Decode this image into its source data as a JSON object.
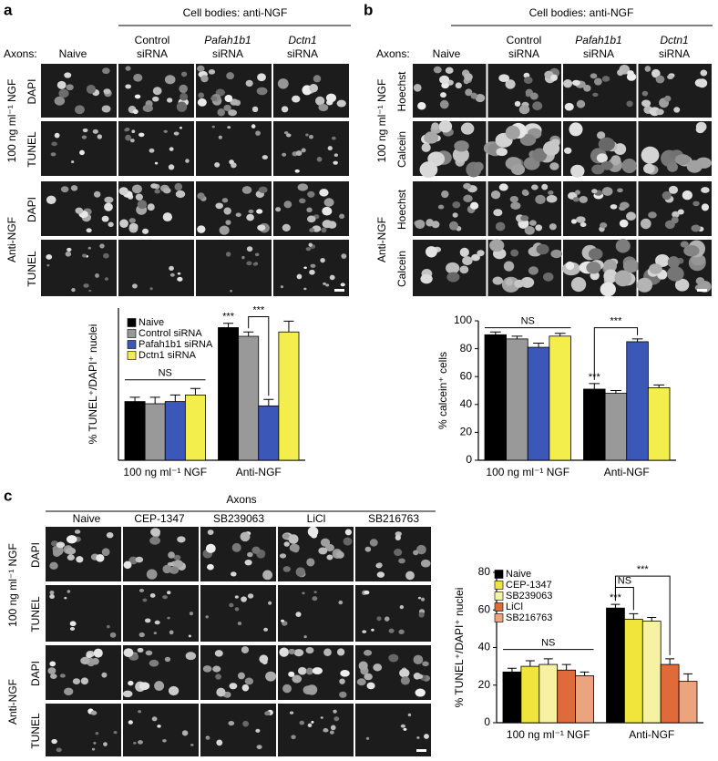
{
  "panels": [
    {
      "label": "a",
      "header": "Cell bodies: anti-NGF",
      "axons_label": "Axons:",
      "columns": [
        [
          "Naive"
        ],
        [
          "Control",
          "siRNA"
        ],
        [
          "Pafah1b1",
          "siRNA"
        ],
        [
          "Dctn1",
          "siRNA"
        ]
      ],
      "row_groups": [
        {
          "name": "100 ng ml⁻¹ NGF",
          "rows": [
            "DAPI",
            "TUNEL"
          ]
        },
        {
          "name": "Anti-NGF",
          "rows": [
            "DAPI",
            "TUNEL"
          ]
        }
      ]
    },
    {
      "label": "b",
      "header": "Cell bodies: anti-NGF",
      "axons_label": "Axons:",
      "columns": [
        [
          "Naive"
        ],
        [
          "Control",
          "siRNA"
        ],
        [
          "Pafah1b1",
          "siRNA"
        ],
        [
          "Dctn1",
          "siRNA"
        ]
      ],
      "row_groups": [
        {
          "name": "100 ng ml⁻¹ NGF",
          "rows": [
            "Hoechst",
            "Calcein"
          ]
        },
        {
          "name": "Anti-NGF",
          "rows": [
            "Hoechst",
            "Calcein"
          ]
        }
      ]
    },
    {
      "label": "c",
      "header": "Axons",
      "columns": [
        [
          "Naive"
        ],
        [
          "CEP-1347"
        ],
        [
          "SB239063"
        ],
        [
          "LiCl"
        ],
        [
          "SB216763"
        ]
      ],
      "row_groups": [
        {
          "name": "100 ng ml⁻¹ NGF",
          "rows": [
            "DAPI",
            "TUNEL"
          ]
        },
        {
          "name": "Anti-NGF",
          "rows": [
            "DAPI",
            "TUNEL"
          ]
        }
      ]
    }
  ],
  "chart_data": [
    {
      "type": "bar",
      "y_label": "% TUNEL⁺/DAPI⁺ nuclei",
      "categories": [
        "100 ng ml⁻¹ NGF",
        "Anti-NGF"
      ],
      "series": [
        {
          "name": "Naive",
          "color": "#000000",
          "values": [
            27,
            61
          ],
          "errors": [
            2,
            2
          ]
        },
        {
          "name": "Control siRNA",
          "color": "#999999",
          "values": [
            26,
            57
          ],
          "errors": [
            3,
            2
          ]
        },
        {
          "name": "Pafah1b1 siRNA",
          "color": "#3b57b8",
          "values": [
            27,
            25
          ],
          "errors": [
            3,
            3
          ]
        },
        {
          "name": "Dctn1 siRNA",
          "color": "#f3ee4c",
          "values": [
            30,
            59
          ],
          "errors": [
            3,
            5
          ]
        }
      ],
      "ylim": [
        0,
        70
      ],
      "annotations": [
        "NS",
        "***",
        "***"
      ]
    },
    {
      "type": "bar",
      "y_label": "% calcein⁺ cells",
      "categories": [
        "100 ng ml⁻¹ NGF",
        "Anti-NGF"
      ],
      "series": [
        {
          "color": "#000000",
          "values": [
            90,
            51
          ],
          "errors": [
            2,
            4
          ]
        },
        {
          "color": "#999999",
          "values": [
            87,
            48
          ],
          "errors": [
            2,
            2
          ]
        },
        {
          "color": "#3b57b8",
          "values": [
            81,
            85
          ],
          "errors": [
            3,
            2
          ]
        },
        {
          "color": "#f3ee4c",
          "values": [
            89,
            52
          ],
          "errors": [
            2,
            2
          ]
        }
      ],
      "ylim": [
        0,
        100
      ],
      "yticks": [
        0,
        20,
        40,
        60,
        80,
        100
      ],
      "annotations": [
        "NS",
        "***",
        "***"
      ]
    },
    {
      "type": "bar",
      "y_label": "% TUNEL⁺/DAPI⁺ nuclei",
      "categories": [
        "100 ng ml⁻¹ NGF",
        "Anti-NGF"
      ],
      "series": [
        {
          "name": "Naive",
          "color": "#000000",
          "values": [
            27,
            61
          ],
          "errors": [
            2,
            2
          ]
        },
        {
          "name": "CEP-1347",
          "color": "#f1e53c",
          "values": [
            30,
            55
          ],
          "errors": [
            3,
            3
          ]
        },
        {
          "name": "SB239063",
          "color": "#f7f2a2",
          "values": [
            31,
            54
          ],
          "errors": [
            3,
            2
          ]
        },
        {
          "name": "LiCl",
          "color": "#e06a3a",
          "values": [
            28,
            31
          ],
          "errors": [
            3,
            3
          ]
        },
        {
          "name": "SB216763",
          "color": "#eba47e",
          "values": [
            25,
            22
          ],
          "errors": [
            2,
            4
          ]
        }
      ],
      "ylim": [
        0,
        80
      ],
      "yticks": [
        0,
        20,
        40,
        60,
        80
      ],
      "annotations": [
        "NS",
        "***",
        "NS",
        "***"
      ]
    }
  ]
}
